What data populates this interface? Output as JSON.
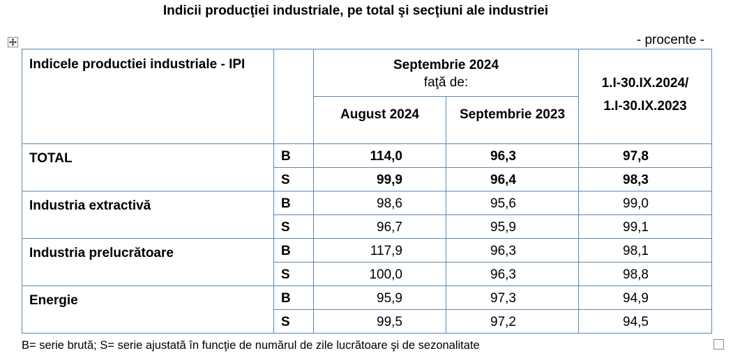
{
  "title": "Indicii producţiei industriale, pe total şi secţiuni ale industriei",
  "unit_note": "- procente -",
  "header": {
    "row_label": "Indicele productiei industriale - IPI",
    "month": "Septembrie 2024",
    "compared_to": "faţă de:",
    "col_prev_month": "August 2024",
    "col_prev_year": "Septembrie 2023",
    "period_line1": "1.I-30.IX.2024/",
    "period_line2": "1.I-30.IX.2023"
  },
  "rows": [
    {
      "label": "TOTAL",
      "bold": true,
      "series": [
        {
          "code": "B",
          "values": [
            "114,0",
            "96,3",
            "97,8"
          ]
        },
        {
          "code": "S",
          "values": [
            "99,9",
            "96,4",
            "98,3"
          ]
        }
      ]
    },
    {
      "label": "Industria extractivă",
      "bold": false,
      "series": [
        {
          "code": "B",
          "values": [
            "98,6",
            "95,6",
            "99,0"
          ]
        },
        {
          "code": "S",
          "values": [
            "96,7",
            "95,9",
            "99,1"
          ]
        }
      ]
    },
    {
      "label": "Industria prelucrătoare",
      "bold": false,
      "series": [
        {
          "code": "B",
          "values": [
            "117,9",
            "96,3",
            "98,1"
          ]
        },
        {
          "code": "S",
          "values": [
            "100,0",
            "96,3",
            "98,8"
          ]
        }
      ]
    },
    {
      "label": "Energie",
      "bold": false,
      "series": [
        {
          "code": "B",
          "values": [
            "95,9",
            "97,3",
            "94,9"
          ]
        },
        {
          "code": "S",
          "values": [
            "99,5",
            "97,2",
            "94,5"
          ]
        }
      ]
    }
  ],
  "footnote": "B= serie brută; S= serie ajustată în funcţie de numărul de zile lucrătoare şi de sezonalitate",
  "icons": {
    "move_handle": "move-arrows-icon",
    "end_marker": "paragraph-end-marker"
  },
  "colors": {
    "table_border": "#5b86b0",
    "text": "#000000"
  }
}
